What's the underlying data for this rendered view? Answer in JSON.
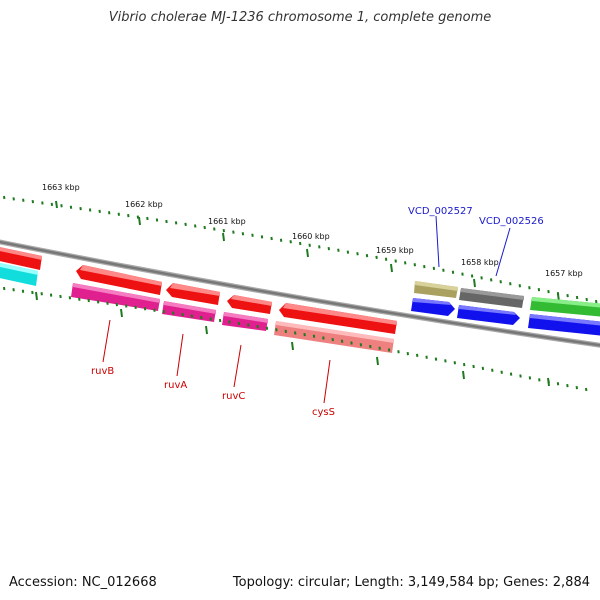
{
  "title": "Vibrio cholerae MJ-1236 chromosome 1, complete genome",
  "footer": {
    "accession": "Accession: NC_012668",
    "summary": "Topology: circular; Length: 3,149,584 bp; Genes: 2,884"
  },
  "scale_labels": [
    "1663 kbp",
    "1662 kbp",
    "1661 kbp",
    "1660 kbp",
    "1659 kbp",
    "1658 kbp",
    "1657 kbp"
  ],
  "gene_labels": {
    "ruvB": "ruvB",
    "ruvA": "ruvA",
    "ruvC": "ruvC",
    "cysS": "cysS",
    "VCD_002527": "VCD_002527",
    "VCD_002526": "VCD_002526"
  },
  "colors": {
    "backbone": "#7a7a7a",
    "tick": "#1e7a1e",
    "label_red": "#cc0000",
    "label_blue": "#1a1acc",
    "red": "#ee1111",
    "magenta": "#e0208f",
    "pink": "#ee8080",
    "cyan": "#11dddd",
    "olive": "#aaa060",
    "gray": "#666666",
    "blue": "#1111ee",
    "green": "#33bb33"
  }
}
